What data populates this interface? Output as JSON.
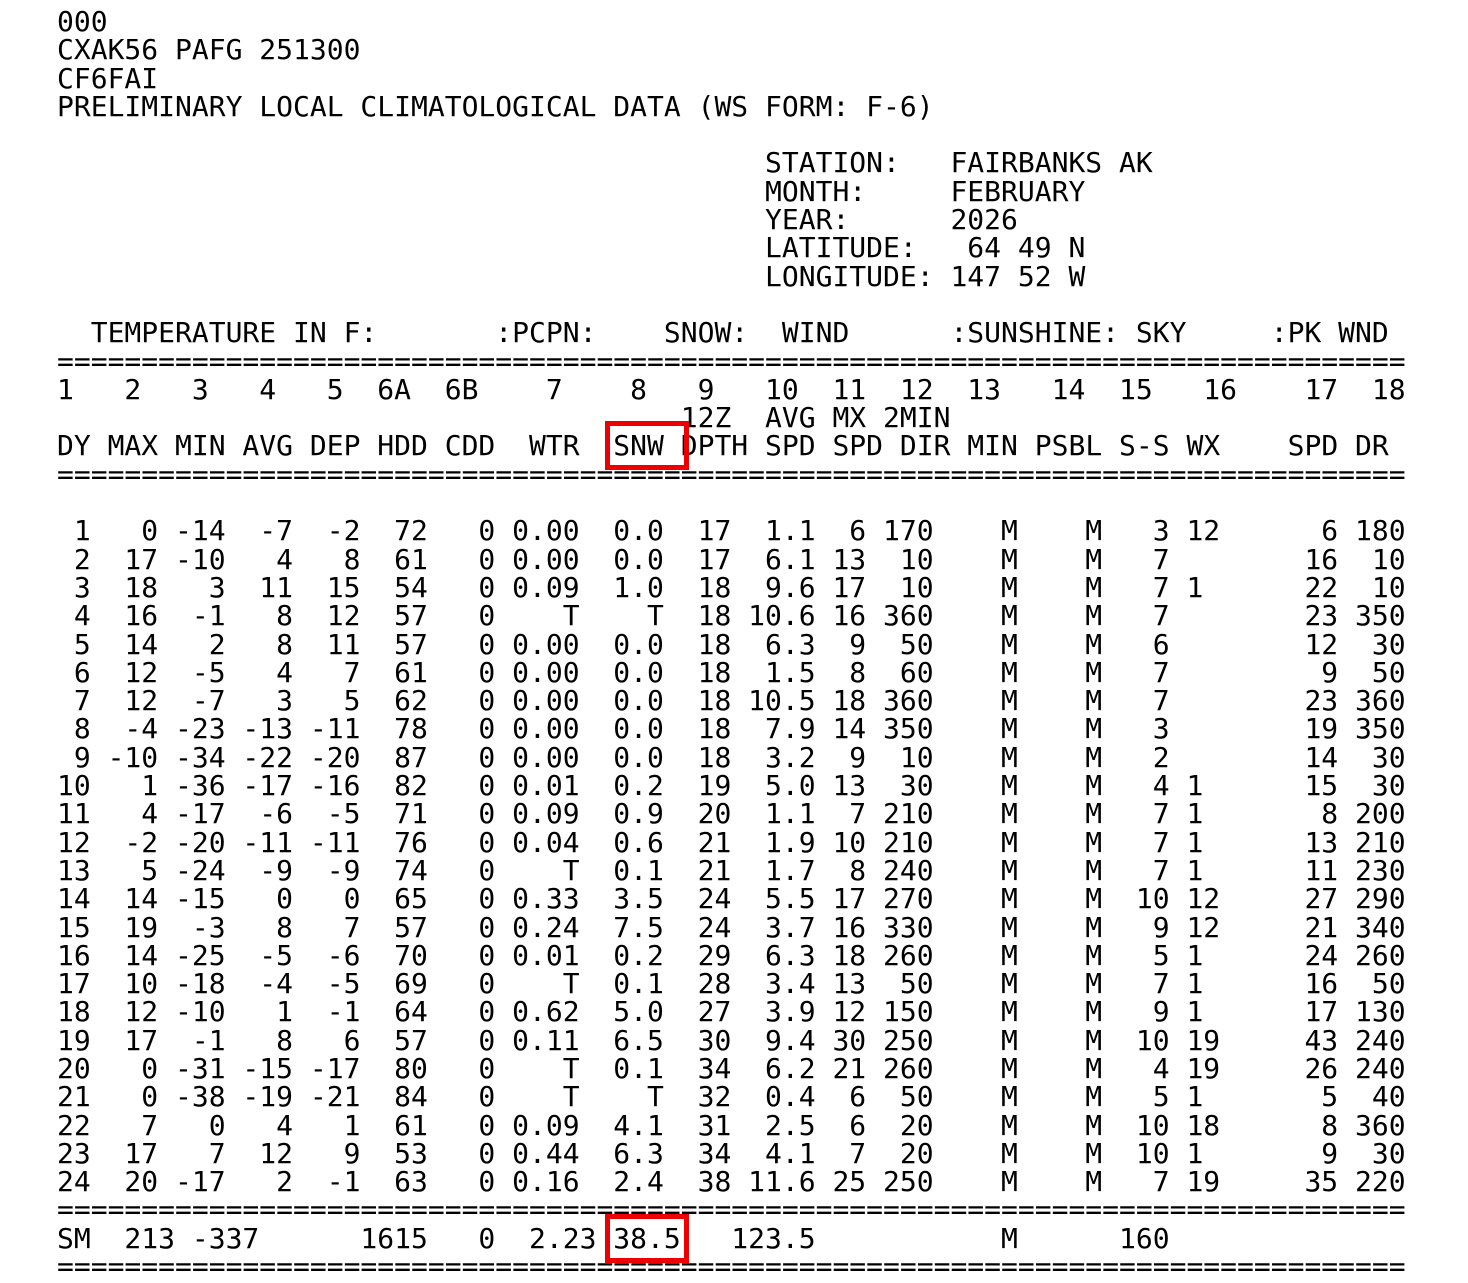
{
  "annotation_color": "#ee0000",
  "document": {
    "wmo_lines": [
      "000",
      "CXAK56 PAFG 251300",
      "CF6FAI"
    ],
    "title": "PRELIMINARY LOCAL CLIMATOLOGICAL DATA (WS FORM: F-6)",
    "station_info": {
      "station_label": "STATION:",
      "station": "FAIRBANKS AK",
      "month_label": "MONTH:",
      "month": "FEBRUARY",
      "year_label": "YEAR:",
      "year": "2026",
      "latitude_label": "LATITUDE:",
      "latitude": "64 49 N",
      "longitude_label": "LONGITUDE:",
      "longitude": "147 52 W"
    },
    "table": {
      "group_headers": [
        "TEMPERATURE IN F:",
        ":PCPN:",
        "SNOW:",
        "WIND",
        ":SUNSHINE:",
        "SKY",
        ":PK WND"
      ],
      "column_numbers": [
        "1",
        "2",
        "3",
        "4",
        "5",
        "6A",
        "6B",
        "7",
        "8",
        "9",
        "10",
        "11",
        "12",
        "13",
        "14",
        "15",
        "16",
        "17",
        "18"
      ],
      "sub_headers": [
        "12Z",
        "AVG",
        "MX",
        "2MIN"
      ],
      "column_headers": [
        "DY",
        "MAX",
        "MIN",
        "AVG",
        "DEP",
        "HDD",
        "CDD",
        "WTR",
        "SNW",
        "DPTH",
        "SPD",
        "SPD",
        "DIR",
        "MIN",
        "PSBL",
        "S-S",
        "WX",
        "SPD",
        "DR"
      ],
      "rows": [
        [
          1,
          0,
          -14,
          -7,
          -2,
          72,
          0,
          "0.00",
          "0.0",
          17,
          "1.1",
          6,
          170,
          "M",
          "M",
          3,
          "12",
          6,
          180
        ],
        [
          2,
          17,
          -10,
          4,
          8,
          61,
          0,
          "0.00",
          "0.0",
          17,
          "6.1",
          13,
          10,
          "M",
          "M",
          7,
          "",
          16,
          10
        ],
        [
          3,
          18,
          3,
          11,
          15,
          54,
          0,
          "0.09",
          "1.0",
          18,
          "9.6",
          17,
          10,
          "M",
          "M",
          7,
          "1",
          22,
          10
        ],
        [
          4,
          16,
          -1,
          8,
          12,
          57,
          0,
          "T",
          "T",
          18,
          "10.6",
          16,
          360,
          "M",
          "M",
          7,
          "",
          23,
          350
        ],
        [
          5,
          14,
          2,
          8,
          11,
          57,
          0,
          "0.00",
          "0.0",
          18,
          "6.3",
          9,
          50,
          "M",
          "M",
          6,
          "",
          12,
          30
        ],
        [
          6,
          12,
          -5,
          4,
          7,
          61,
          0,
          "0.00",
          "0.0",
          18,
          "1.5",
          8,
          60,
          "M",
          "M",
          7,
          "",
          9,
          50
        ],
        [
          7,
          12,
          -7,
          3,
          5,
          62,
          0,
          "0.00",
          "0.0",
          18,
          "10.5",
          18,
          360,
          "M",
          "M",
          7,
          "",
          23,
          360
        ],
        [
          8,
          -4,
          -23,
          -13,
          -11,
          78,
          0,
          "0.00",
          "0.0",
          18,
          "7.9",
          14,
          350,
          "M",
          "M",
          3,
          "",
          19,
          350
        ],
        [
          9,
          -10,
          -34,
          -22,
          -20,
          87,
          0,
          "0.00",
          "0.0",
          18,
          "3.2",
          9,
          10,
          "M",
          "M",
          2,
          "",
          14,
          30
        ],
        [
          10,
          1,
          -36,
          -17,
          -16,
          82,
          0,
          "0.01",
          "0.2",
          19,
          "5.0",
          13,
          30,
          "M",
          "M",
          4,
          "1",
          15,
          30
        ],
        [
          11,
          4,
          -17,
          -6,
          -5,
          71,
          0,
          "0.09",
          "0.9",
          20,
          "1.1",
          7,
          210,
          "M",
          "M",
          7,
          "1",
          8,
          200
        ],
        [
          12,
          -2,
          -20,
          -11,
          -11,
          76,
          0,
          "0.04",
          "0.6",
          21,
          "1.9",
          10,
          210,
          "M",
          "M",
          7,
          "1",
          13,
          210
        ],
        [
          13,
          5,
          -24,
          -9,
          -9,
          74,
          0,
          "T",
          "0.1",
          21,
          "1.7",
          8,
          240,
          "M",
          "M",
          7,
          "1",
          11,
          230
        ],
        [
          14,
          14,
          -15,
          0,
          0,
          65,
          0,
          "0.33",
          "3.5",
          24,
          "5.5",
          17,
          270,
          "M",
          "M",
          10,
          "12",
          27,
          290
        ],
        [
          15,
          19,
          -3,
          8,
          7,
          57,
          0,
          "0.24",
          "7.5",
          24,
          "3.7",
          16,
          330,
          "M",
          "M",
          9,
          "12",
          21,
          340
        ],
        [
          16,
          14,
          -25,
          -5,
          -6,
          70,
          0,
          "0.01",
          "0.2",
          29,
          "6.3",
          18,
          260,
          "M",
          "M",
          5,
          "1",
          24,
          260
        ],
        [
          17,
          10,
          -18,
          -4,
          -5,
          69,
          0,
          "T",
          "0.1",
          28,
          "3.4",
          13,
          50,
          "M",
          "M",
          7,
          "1",
          16,
          50
        ],
        [
          18,
          12,
          -10,
          1,
          -1,
          64,
          0,
          "0.62",
          "5.0",
          27,
          "3.9",
          12,
          150,
          "M",
          "M",
          9,
          "1",
          17,
          130
        ],
        [
          19,
          17,
          -1,
          8,
          6,
          57,
          0,
          "0.11",
          "6.5",
          30,
          "9.4",
          30,
          250,
          "M",
          "M",
          10,
          "19",
          43,
          240
        ],
        [
          20,
          0,
          -31,
          -15,
          -17,
          80,
          0,
          "T",
          "0.1",
          34,
          "6.2",
          21,
          260,
          "M",
          "M",
          4,
          "19",
          26,
          240
        ],
        [
          21,
          0,
          -38,
          -19,
          -21,
          84,
          0,
          "T",
          "T",
          32,
          "0.4",
          6,
          50,
          "M",
          "M",
          5,
          "1",
          5,
          40
        ],
        [
          22,
          7,
          0,
          4,
          1,
          61,
          0,
          "0.09",
          "4.1",
          31,
          "2.5",
          6,
          20,
          "M",
          "M",
          10,
          "18",
          8,
          360
        ],
        [
          23,
          17,
          7,
          12,
          9,
          53,
          0,
          "0.44",
          "6.3",
          34,
          "4.1",
          7,
          20,
          "M",
          "M",
          10,
          "1",
          9,
          30
        ],
        [
          24,
          20,
          -17,
          2,
          -1,
          63,
          0,
          "0.16",
          "2.4",
          38,
          "11.6",
          25,
          250,
          "M",
          "M",
          7,
          "19",
          35,
          220
        ]
      ],
      "summary": {
        "label": "SM",
        "max_sum": 213,
        "min_sum": -337,
        "hdd_sum": 1615,
        "cdd_sum": 0,
        "wtr_sum": "2.23",
        "snw_sum": "38.5",
        "avg_spd_sum": "123.5",
        "sunshine_min_sum": "M",
        "s_s_sum": 160
      }
    },
    "lines": [
      "000",
      "CXAK56 PAFG 251300",
      "CF6FAI",
      "PRELIMINARY LOCAL CLIMATOLOGICAL DATA (WS FORM: F-6)",
      "",
      "                                          STATION:   FAIRBANKS AK",
      "                                          MONTH:     FEBRUARY",
      "                                          YEAR:      2026",
      "                                          LATITUDE:   64 49 N",
      "                                          LONGITUDE: 147 52 W",
      "",
      "  TEMPERATURE IN F:       :PCPN:    SNOW:  WIND      :SUNSHINE: SKY     :PK WND",
      "================================================================================",
      "1   2   3   4   5  6A  6B    7    8   9   10  11  12  13   14  15   16    17  18",
      "                                     12Z  AVG MX 2MIN",
      "DY MAX MIN AVG DEP HDD CDD  WTR  SNW DPTH SPD SPD DIR MIN PSBL S-S WX    SPD DR",
      "================================================================================",
      "",
      " 1   0 -14  -7  -2  72   0 0.00  0.0  17  1.1  6 170    M    M   3 12      6 180",
      " 2  17 -10   4   8  61   0 0.00  0.0  17  6.1 13  10    M    M   7        16  10",
      " 3  18   3  11  15  54   0 0.09  1.0  18  9.6 17  10    M    M   7 1      22  10",
      " 4  16  -1   8  12  57   0    T    T  18 10.6 16 360    M    M   7        23 350",
      " 5  14   2   8  11  57   0 0.00  0.0  18  6.3  9  50    M    M   6        12  30",
      " 6  12  -5   4   7  61   0 0.00  0.0  18  1.5  8  60    M    M   7         9  50",
      " 7  12  -7   3   5  62   0 0.00  0.0  18 10.5 18 360    M    M   7        23 360",
      " 8  -4 -23 -13 -11  78   0 0.00  0.0  18  7.9 14 350    M    M   3        19 350",
      " 9 -10 -34 -22 -20  87   0 0.00  0.0  18  3.2  9  10    M    M   2        14  30",
      "10   1 -36 -17 -16  82   0 0.01  0.2  19  5.0 13  30    M    M   4 1      15  30",
      "11   4 -17  -6  -5  71   0 0.09  0.9  20  1.1  7 210    M    M   7 1       8 200",
      "12  -2 -20 -11 -11  76   0 0.04  0.6  21  1.9 10 210    M    M   7 1      13 210",
      "13   5 -24  -9  -9  74   0    T  0.1  21  1.7  8 240    M    M   7 1      11 230",
      "14  14 -15   0   0  65   0 0.33  3.5  24  5.5 17 270    M    M  10 12     27 290",
      "15  19  -3   8   7  57   0 0.24  7.5  24  3.7 16 330    M    M   9 12     21 340",
      "16  14 -25  -5  -6  70   0 0.01  0.2  29  6.3 18 260    M    M   5 1      24 260",
      "17  10 -18  -4  -5  69   0    T  0.1  28  3.4 13  50    M    M   7 1      16  50",
      "18  12 -10   1  -1  64   0 0.62  5.0  27  3.9 12 150    M    M   9 1      17 130",
      "19  17  -1   8   6  57   0 0.11  6.5  30  9.4 30 250    M    M  10 19     43 240",
      "20   0 -31 -15 -17  80   0    T  0.1  34  6.2 21 260    M    M   4 19     26 240",
      "21   0 -38 -19 -21  84   0    T    T  32  0.4  6  50    M    M   5 1       5  40",
      "22   7   0   4   1  61   0 0.09  4.1  31  2.5  6  20    M    M  10 18      8 360",
      "23  17   7  12   9  53   0 0.44  6.3  34  4.1  7  20    M    M  10 1       9  30",
      "24  20 -17   2  -1  63   0 0.16  2.4  38 11.6 25 250    M    M   7 19     35 220",
      "================================================================================",
      "SM  213 -337      1615   0  2.23 38.5   123.5           M      160",
      "================================================================================"
    ],
    "annotations": [
      {
        "label": "highlight-snw-column-header",
        "line": 15,
        "start": 33,
        "end": 37
      },
      {
        "label": "highlight-snow-monthly-total",
        "line": 43,
        "start": 33,
        "end": 37
      }
    ]
  }
}
